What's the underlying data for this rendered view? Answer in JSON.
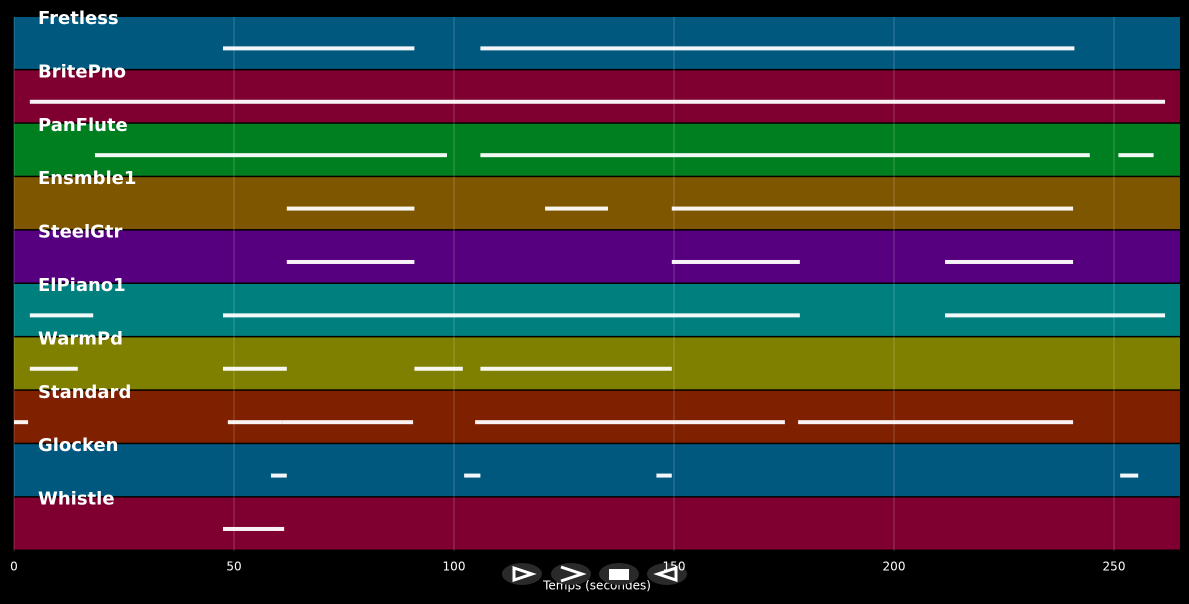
{
  "chart_data": {
    "type": "piano-roll",
    "xlabel": "Temps (secondes)",
    "xlim": [
      0,
      265
    ],
    "xticks": [
      0,
      50,
      100,
      150,
      200,
      250
    ],
    "grid": true,
    "tracks": [
      {
        "name": "Fretless",
        "color": "#00587f",
        "segments": [
          [
            47.5,
            91
          ],
          [
            106,
            241
          ]
        ]
      },
      {
        "name": "BritePno",
        "color": "#7f0030",
        "segments": [
          [
            3.6,
            261.6
          ]
        ]
      },
      {
        "name": "PanFlute",
        "color": "#007f20",
        "segments": [
          [
            18.4,
            98.4
          ],
          [
            106,
            244.5
          ],
          [
            251,
            259
          ]
        ]
      },
      {
        "name": "Ensmble1",
        "color": "#7f5600",
        "segments": [
          [
            62,
            91
          ],
          [
            120.7,
            135
          ],
          [
            149.5,
            240.7
          ]
        ]
      },
      {
        "name": "SteelGtr",
        "color": "#57007f",
        "segments": [
          [
            62,
            91
          ],
          [
            149.5,
            178.6
          ],
          [
            211.6,
            240.7
          ]
        ]
      },
      {
        "name": "ElPiano1",
        "color": "#007f7f",
        "segments": [
          [
            3.6,
            18
          ],
          [
            47.5,
            178.6
          ],
          [
            211.6,
            261.6
          ]
        ]
      },
      {
        "name": "WarmPd",
        "color": "#7f7f00",
        "segments": [
          [
            3.6,
            14.5
          ],
          [
            47.5,
            62
          ],
          [
            91,
            102
          ],
          [
            106,
            149.5
          ]
        ]
      },
      {
        "name": "Standard",
        "color": "#7f2000",
        "segments": [
          [
            0,
            3.2
          ],
          [
            48.6,
            61
          ],
          [
            61,
            90.7
          ],
          [
            104.8,
            175.2
          ],
          [
            178.2,
            240.7
          ]
        ]
      },
      {
        "name": "Glocken",
        "color": "#00587f",
        "segments": [
          [
            58.4,
            62
          ],
          [
            102.3,
            106
          ],
          [
            146,
            149.5
          ],
          [
            251.4,
            255.5
          ]
        ]
      },
      {
        "name": "Whistle",
        "color": "#7f0030",
        "segments": [
          [
            47.5,
            61.4
          ]
        ]
      }
    ]
  }
}
